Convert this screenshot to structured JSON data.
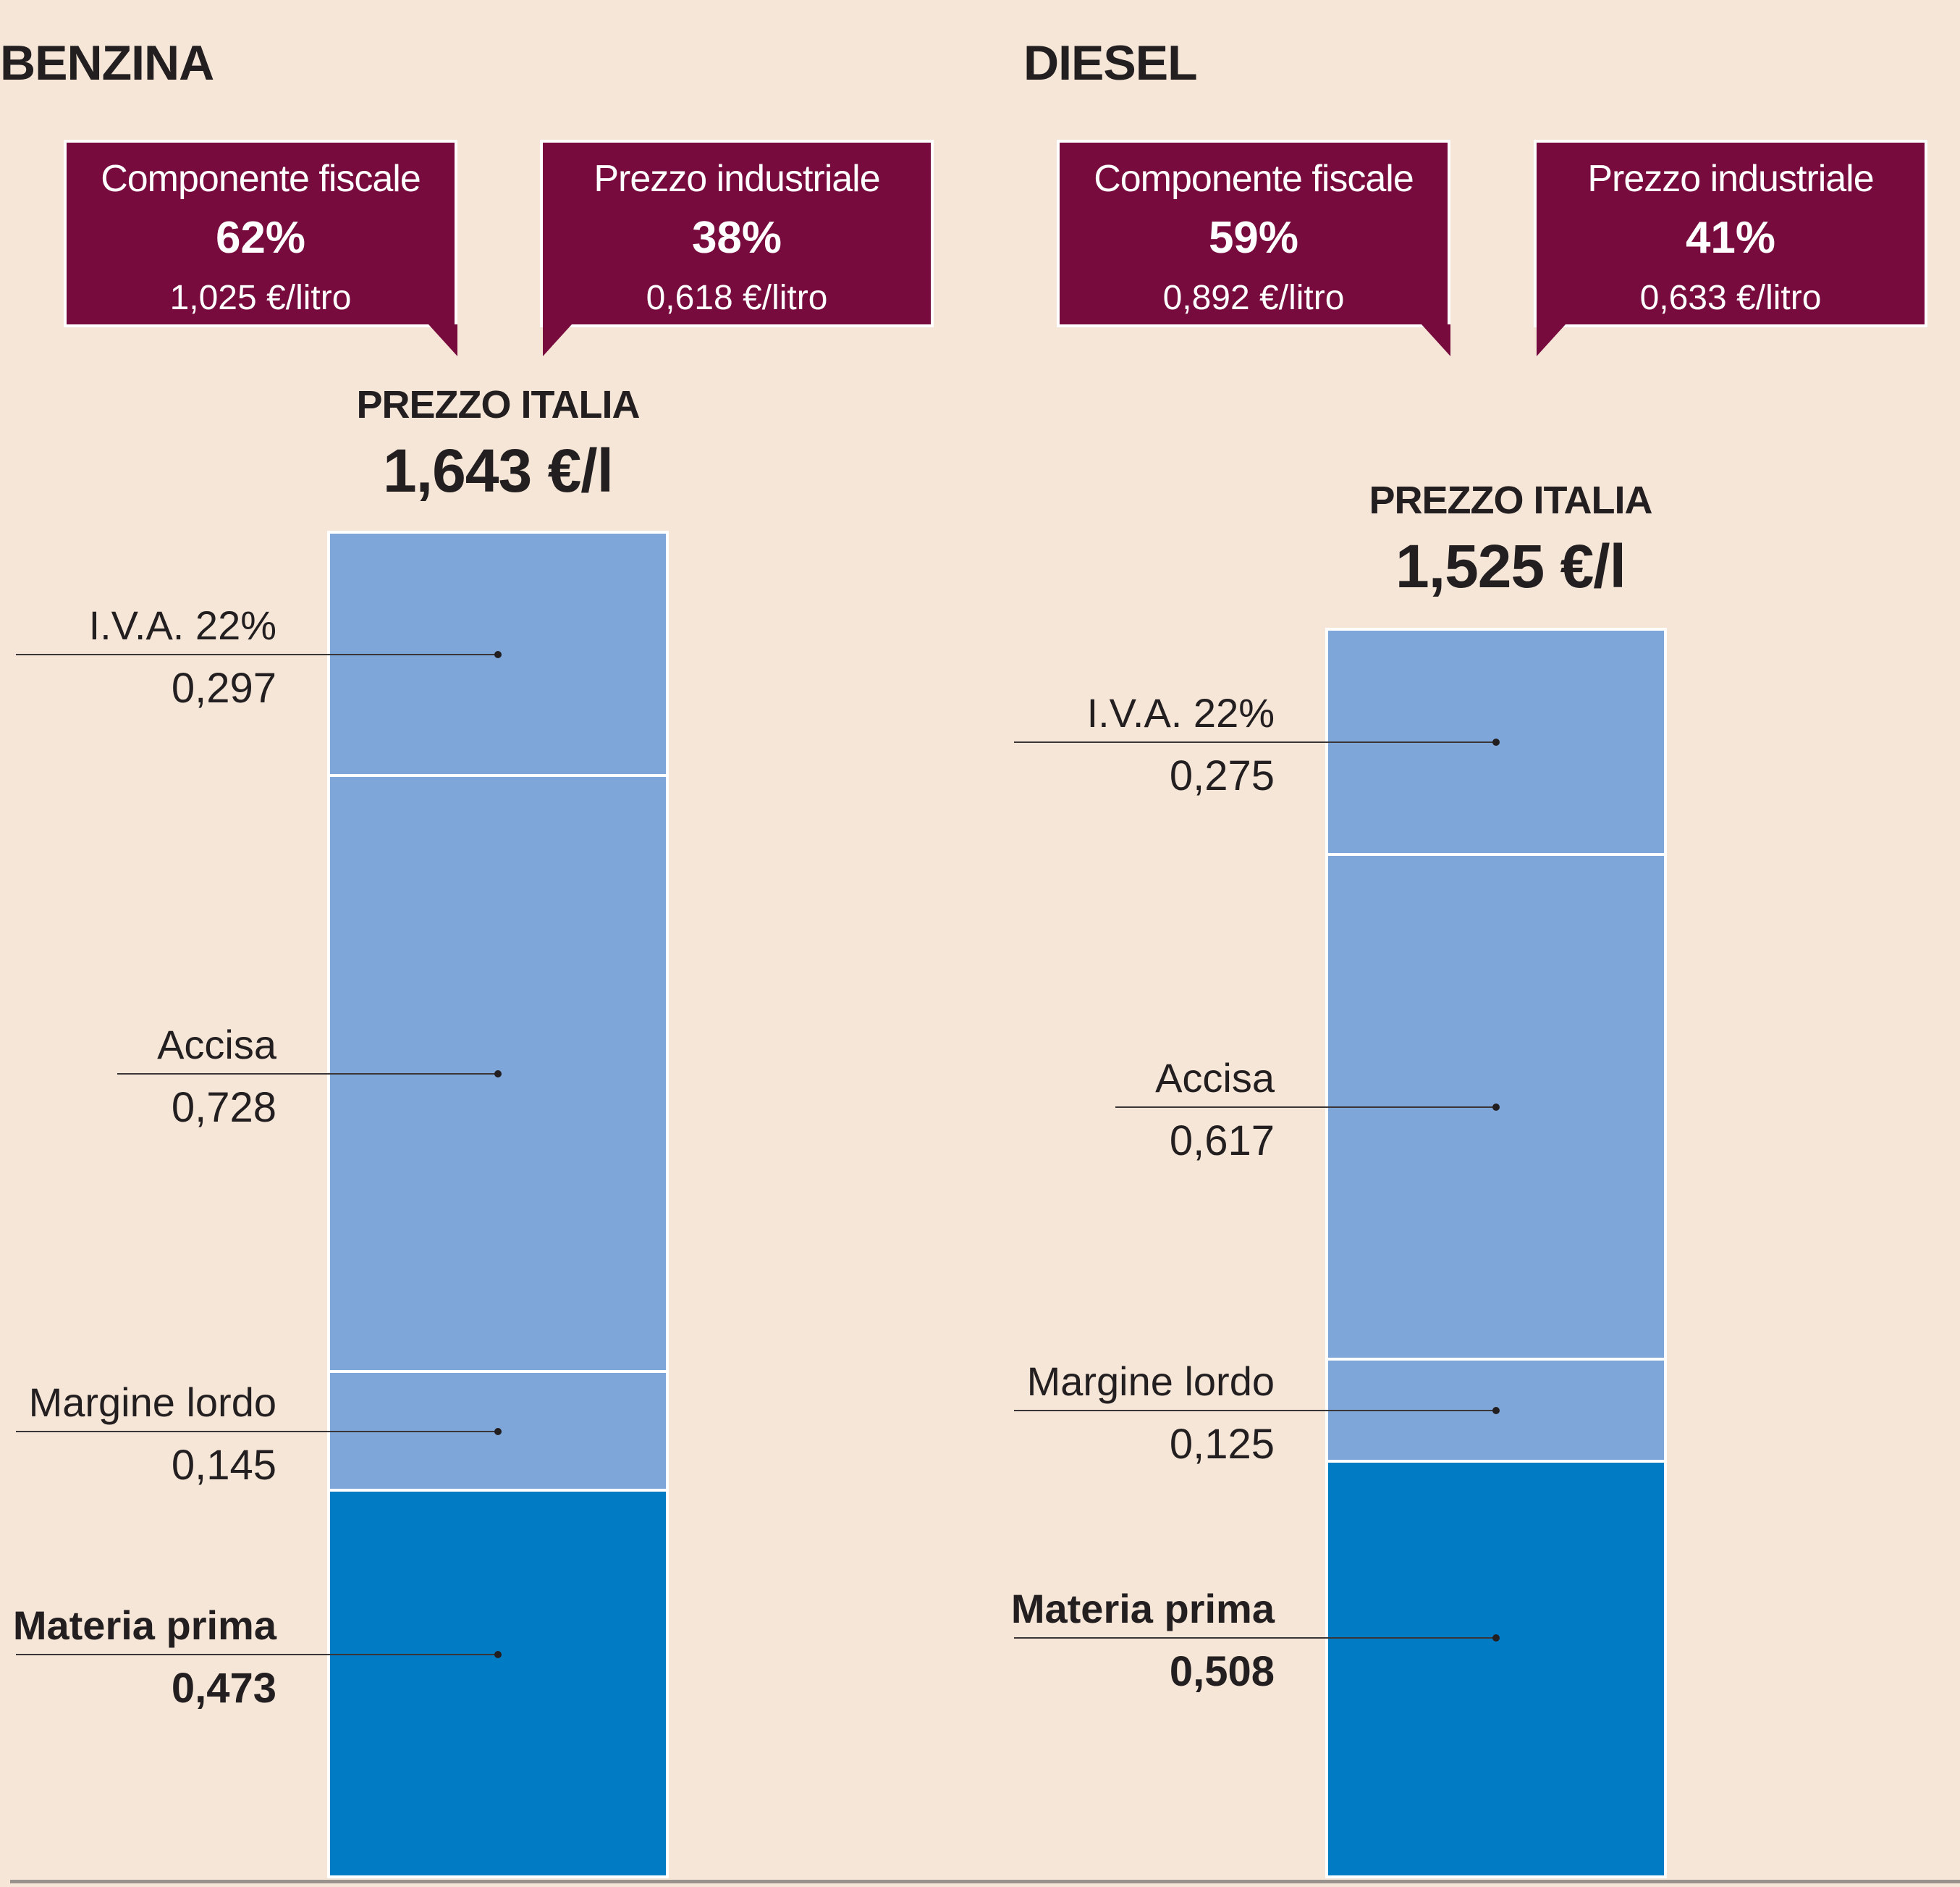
{
  "chart_data": {
    "type": "bar",
    "subtype": "stacked",
    "unit": "€/l",
    "stack_order_bottom_to_top": [
      "Materia prima",
      "Margine lordo",
      "Accisa",
      "I.V.A. 22%"
    ],
    "colors": {
      "Materia prima": "#027bc5",
      "Margine lordo": "#7ea6d8",
      "Accisa": "#7ea6d8",
      "I.V.A. 22%": "#7ea6d8",
      "callout": "#770b3d",
      "background": "#f5e6d7"
    },
    "panels": [
      {
        "title": "BENZINA",
        "callouts": [
          {
            "label": "Componente fiscale",
            "percent": "62%",
            "per_litre": "1,025 €/litro"
          },
          {
            "label": "Prezzo industriale",
            "percent": "38%",
            "per_litre": "0,618 €/litro"
          }
        ],
        "total_label": "PREZZO ITALIA",
        "total_value": "1,643 €/l",
        "total": 1.643,
        "segments": [
          {
            "name": "Materia prima",
            "value": 0.473,
            "display": "0,473",
            "bold": true
          },
          {
            "name": "Margine lordo",
            "value": 0.145,
            "display": "0,145",
            "bold": false
          },
          {
            "name": "Accisa",
            "value": 0.728,
            "display": "0,728",
            "bold": false
          },
          {
            "name": "I.V.A. 22%",
            "value": 0.297,
            "display": "0,297",
            "bold": false
          }
        ]
      },
      {
        "title": "DIESEL",
        "callouts": [
          {
            "label": "Componente fiscale",
            "percent": "59%",
            "per_litre": "0,892 €/litro"
          },
          {
            "label": "Prezzo industriale",
            "percent": "41%",
            "per_litre": "0,633 €/litro"
          }
        ],
        "total_label": "PREZZO ITALIA",
        "total_value": "1,525 €/l",
        "total": 1.525,
        "segments": [
          {
            "name": "Materia prima",
            "value": 0.508,
            "display": "0,508",
            "bold": true
          },
          {
            "name": "Margine lordo",
            "value": 0.125,
            "display": "0,125",
            "bold": false
          },
          {
            "name": "Accisa",
            "value": 0.617,
            "display": "0,617",
            "bold": false
          },
          {
            "name": "I.V.A. 22%",
            "value": 0.275,
            "display": "0,275",
            "bold": false
          }
        ]
      }
    ]
  }
}
